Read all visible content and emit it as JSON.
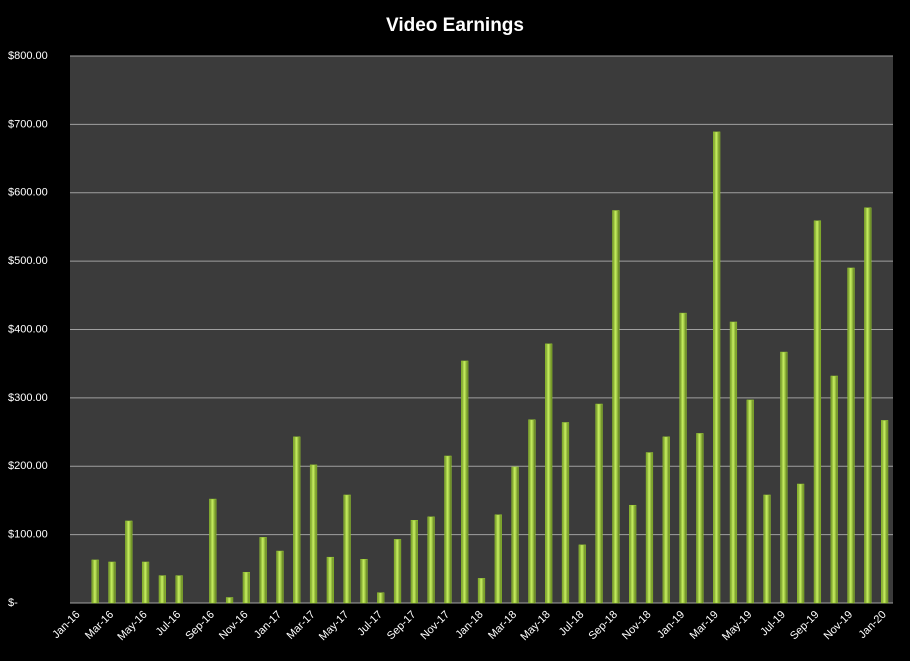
{
  "chart_data": {
    "type": "bar",
    "title": "Video Earnings",
    "categories": [
      "Jan-16",
      null,
      "Mar-16",
      null,
      "May-16",
      null,
      "Jul-16",
      null,
      "Sep-16",
      null,
      "Nov-16",
      null,
      "Jan-17",
      null,
      "Mar-17",
      null,
      "May-17",
      null,
      "Jul-17",
      null,
      "Sep-17",
      null,
      "Nov-17",
      null,
      "Jan-18",
      null,
      "Mar-18",
      null,
      "May-18",
      null,
      "Jul-18",
      null,
      "Sep-18",
      null,
      "Nov-18",
      null,
      "Jan-19",
      null,
      "Mar-19",
      null,
      "May-19",
      null,
      "Jul-19",
      null,
      "Sep-19",
      null,
      "Nov-19",
      null,
      "Jan-20"
    ],
    "values": [
      0,
      63,
      60,
      120,
      60,
      40,
      40,
      0,
      152,
      8,
      45,
      96,
      76,
      243,
      202,
      67,
      158,
      64,
      15,
      93,
      121,
      126,
      215,
      354,
      36,
      129,
      199,
      268,
      379,
      264,
      85,
      291,
      574,
      143,
      220,
      243,
      424,
      248,
      689,
      411,
      297,
      158,
      367,
      174,
      559,
      332,
      490,
      578,
      267
    ],
    "color": "#9acd32",
    "ylim": [
      0,
      800
    ],
    "yticks": [
      {
        "value": 0,
        "label": "$-"
      },
      {
        "value": 100,
        "label": "$100.00"
      },
      {
        "value": 200,
        "label": "$200.00"
      },
      {
        "value": 300,
        "label": "$300.00"
      },
      {
        "value": 400,
        "label": "$400.00"
      },
      {
        "value": 500,
        "label": "$500.00"
      },
      {
        "value": 600,
        "label": "$600.00"
      },
      {
        "value": 700,
        "label": "$700.00"
      },
      {
        "value": 800,
        "label": "$800.00"
      }
    ],
    "grid": true
  }
}
